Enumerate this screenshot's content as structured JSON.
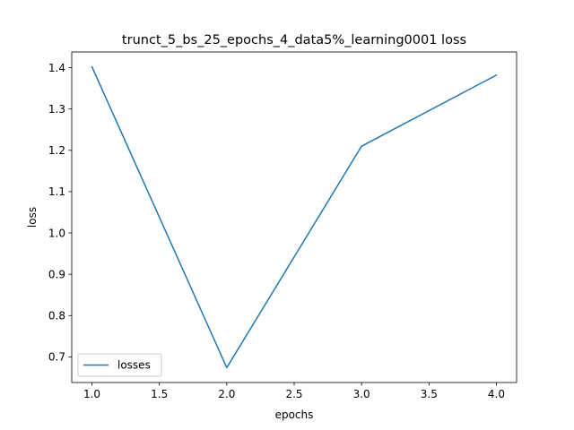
{
  "chart_data": {
    "type": "line",
    "title": "trunct_5_bs_25_epochs_4_data5%_learning0001 loss",
    "xlabel": "epochs",
    "ylabel": "loss",
    "xlim": [
      0.85,
      4.15
    ],
    "ylim": [
      0.638,
      1.438
    ],
    "xticks": [
      1.0,
      1.5,
      2.0,
      2.5,
      3.0,
      3.5,
      4.0
    ],
    "xtick_labels": [
      "1.0",
      "1.5",
      "2.0",
      "2.5",
      "3.0",
      "3.5",
      "4.0"
    ],
    "yticks": [
      0.7,
      0.8,
      0.9,
      1.0,
      1.1,
      1.2,
      1.3,
      1.4
    ],
    "ytick_labels": [
      "0.7",
      "0.8",
      "0.9",
      "1.0",
      "1.1",
      "1.2",
      "1.3",
      "1.4"
    ],
    "grid": false,
    "legend_position": "lower-left",
    "series": [
      {
        "name": "losses",
        "color": "#1f77b4",
        "x": [
          1.0,
          2.0,
          3.0,
          4.0
        ],
        "y": [
          1.402,
          0.674,
          1.21,
          1.382
        ]
      }
    ]
  }
}
